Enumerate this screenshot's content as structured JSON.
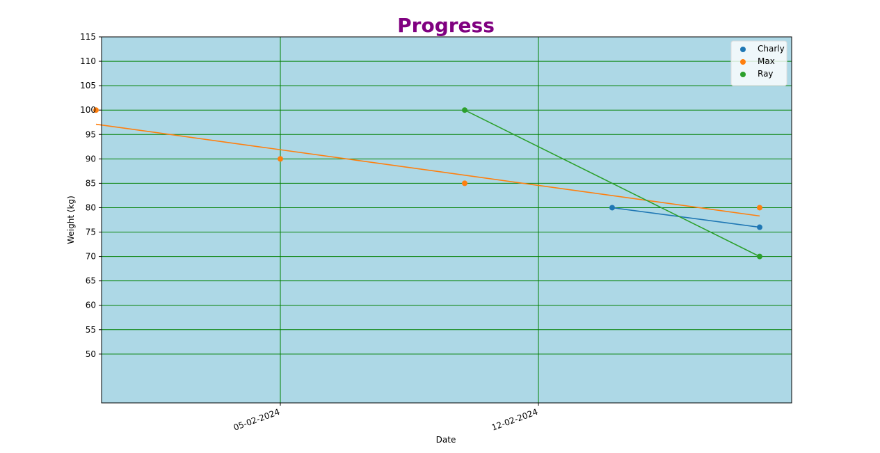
{
  "chart_data": {
    "type": "line",
    "title": "Progress",
    "xlabel": "Date",
    "ylabel": "Weight (kg)",
    "x_ticks": [
      "05-02-2024",
      "12-02-2024"
    ],
    "y_ticks": [
      50,
      55,
      60,
      65,
      70,
      75,
      80,
      85,
      90,
      95,
      100,
      105,
      110,
      115
    ],
    "ylim": [
      40,
      115
    ],
    "xlim": [
      "01-02-2024",
      "15-02-2024"
    ],
    "grid": true,
    "legend_position": "top-right",
    "colors": {
      "plot_background": "#add8e6",
      "grid": "#008000",
      "title": "#800080"
    },
    "series": [
      {
        "name": "Charly",
        "color": "#1f77b4",
        "points": [
          {
            "x": "2024-02-14",
            "y": 80
          },
          {
            "x": "2024-02-18",
            "y": 76
          }
        ],
        "trend_line": [
          {
            "x": "2024-02-14",
            "y": 80
          },
          {
            "x": "2024-02-18",
            "y": 76
          }
        ]
      },
      {
        "name": "Max",
        "color": "#ff7f0e",
        "points": [
          {
            "x": "2024-01-31",
            "y": 100
          },
          {
            "x": "2024-02-05",
            "y": 90
          },
          {
            "x": "2024-02-10",
            "y": 85
          },
          {
            "x": "2024-02-18",
            "y": 80
          }
        ],
        "trend_line": [
          {
            "x": "2024-01-31",
            "y": 97.1
          },
          {
            "x": "2024-02-18",
            "y": 78.3
          }
        ]
      },
      {
        "name": "Ray",
        "color": "#2ca02c",
        "points": [
          {
            "x": "2024-02-10",
            "y": 100
          },
          {
            "x": "2024-02-18",
            "y": 70
          }
        ],
        "trend_line": [
          {
            "x": "2024-02-10",
            "y": 100
          },
          {
            "x": "2024-02-18",
            "y": 70
          }
        ]
      }
    ]
  }
}
